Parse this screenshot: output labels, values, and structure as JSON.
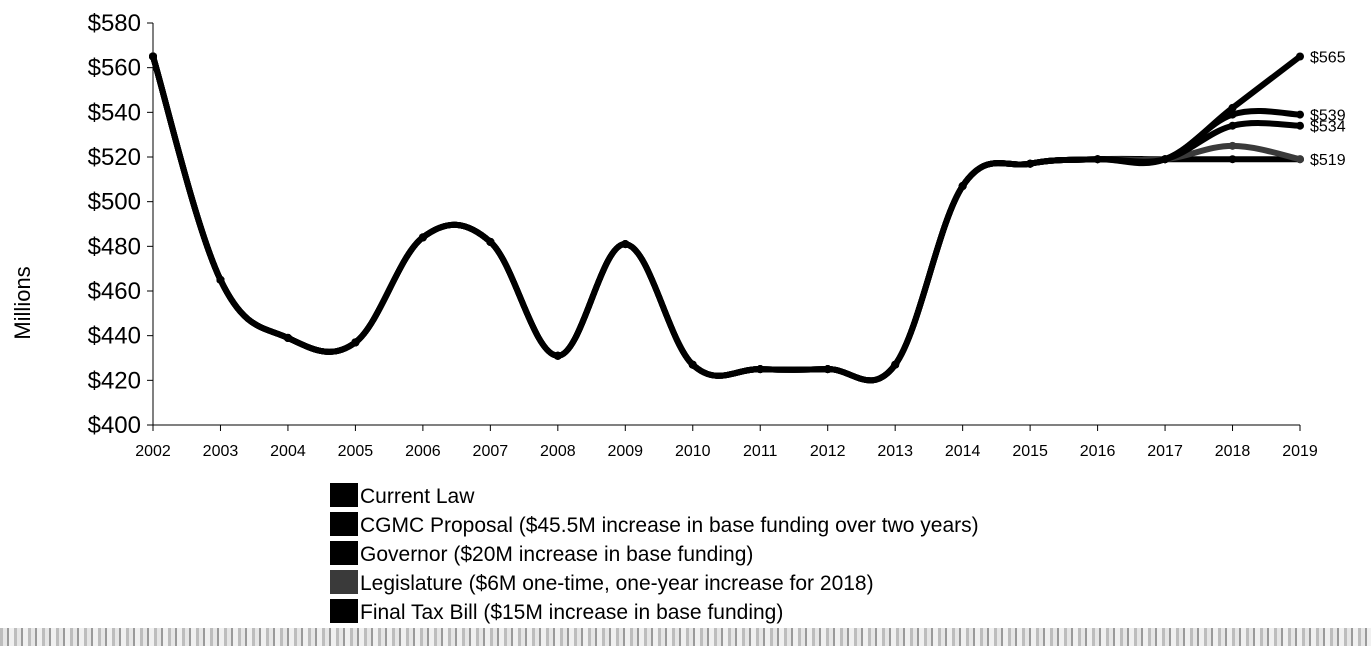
{
  "chart_data": {
    "type": "line",
    "x": [
      "2002",
      "2003",
      "2004",
      "2005",
      "2006",
      "2007",
      "2008",
      "2009",
      "2010",
      "2011",
      "2012",
      "2013",
      "2014",
      "2015",
      "2016",
      "2017",
      "2018",
      "2019"
    ],
    "ylabel": "Millions",
    "ylim": [
      400,
      580
    ],
    "ytick_step": 20,
    "ytick_labels": [
      "$400",
      "$420",
      "$440",
      "$460",
      "$480",
      "$500",
      "$520",
      "$540",
      "$560",
      "$580"
    ],
    "grid": false,
    "legend_position": "bottom",
    "series": [
      {
        "name": "Current Law",
        "color": "#000000",
        "values": [
          565,
          465,
          439,
          437,
          484,
          482,
          431,
          481,
          427,
          425,
          425,
          427,
          507,
          517,
          519,
          519,
          519,
          519
        ]
      },
      {
        "name": "CGMC Proposal ($45.5M increase in base funding over two years)",
        "color": "#000000",
        "values": [
          565,
          465,
          439,
          437,
          484,
          482,
          431,
          481,
          427,
          425,
          425,
          427,
          507,
          517,
          519,
          519,
          542,
          565
        ]
      },
      {
        "name": "Governor ($20M increase in base funding)",
        "color": "#000000",
        "values": [
          565,
          465,
          439,
          437,
          484,
          482,
          431,
          481,
          427,
          425,
          425,
          427,
          507,
          517,
          519,
          519,
          539,
          539
        ]
      },
      {
        "name": "Legislature ($6M one-time, one-year increase for 2018)",
        "color": "#3a3a3a",
        "values": [
          565,
          465,
          439,
          437,
          484,
          482,
          431,
          481,
          427,
          425,
          425,
          427,
          507,
          517,
          519,
          519,
          525,
          519
        ]
      },
      {
        "name": "Final Tax Bill ($15M increase in base funding)",
        "color": "#000000",
        "values": [
          565,
          465,
          439,
          437,
          484,
          482,
          431,
          481,
          427,
          425,
          425,
          427,
          507,
          517,
          519,
          519,
          534,
          534
        ]
      }
    ],
    "end_labels": [
      {
        "text": "$565",
        "value": 565
      },
      {
        "text": "$539",
        "value": 539
      },
      {
        "text": "$534",
        "value": 534
      },
      {
        "text": "$519",
        "value": 519
      }
    ]
  }
}
